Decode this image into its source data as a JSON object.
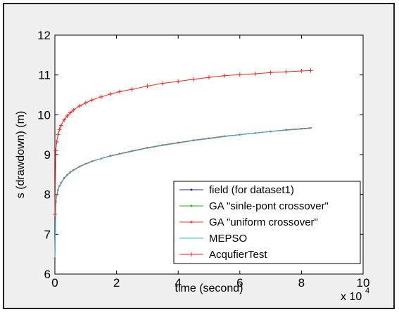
{
  "chart_data": {
    "type": "line",
    "title": "",
    "xlabel": "time (second)",
    "ylabel": "s (drawdown) (m)",
    "x_multiplier_label": "x 10",
    "x_multiplier_exponent": "4",
    "xlim": [
      0,
      100000
    ],
    "ylim": [
      6,
      12
    ],
    "x_ticks": [
      0,
      20000,
      40000,
      60000,
      80000,
      100000
    ],
    "x_tick_labels": [
      "0",
      "2",
      "4",
      "6",
      "8",
      "10"
    ],
    "y_ticks": [
      6,
      7,
      8,
      9,
      10,
      11,
      12
    ],
    "y_tick_labels": [
      "6",
      "7",
      "8",
      "9",
      "10",
      "11",
      "12"
    ],
    "grid": false,
    "legend_position": "bottom-right",
    "x": [
      0,
      300,
      600,
      1000,
      1500,
      2000,
      3000,
      4000,
      5000,
      6000,
      8000,
      10000,
      12000,
      15000,
      18000,
      21000,
      25000,
      30000,
      35000,
      40000,
      45000,
      50000,
      55000,
      60000,
      65000,
      70000,
      75000,
      80000,
      83000
    ],
    "series": [
      {
        "name": "field (for dataset1)",
        "color": "#2a2a8a",
        "marker": "dot",
        "values": [
          6.4,
          7.82,
          7.99,
          8.11,
          8.22,
          8.29,
          8.41,
          8.49,
          8.56,
          8.61,
          8.7,
          8.77,
          8.83,
          8.9,
          8.97,
          9.02,
          9.09,
          9.17,
          9.24,
          9.3,
          9.36,
          9.41,
          9.46,
          9.5,
          9.54,
          9.58,
          9.62,
          9.65,
          9.67
        ]
      },
      {
        "name": "GA \"sinle-pont crossover\"",
        "color": "#22aa22",
        "marker": "dot",
        "values": [
          6.4,
          7.8,
          7.98,
          8.1,
          8.21,
          8.29,
          8.4,
          8.48,
          8.55,
          8.61,
          8.7,
          8.77,
          8.83,
          8.9,
          8.96,
          9.02,
          9.09,
          9.17,
          9.24,
          9.3,
          9.36,
          9.41,
          9.46,
          9.5,
          9.54,
          9.58,
          9.62,
          9.65,
          9.67
        ]
      },
      {
        "name": "GA \"uniform crossover\"",
        "color": "#ff3333",
        "marker": "dot",
        "values": [
          6.4,
          7.81,
          7.99,
          8.11,
          8.22,
          8.29,
          8.4,
          8.49,
          8.56,
          8.61,
          8.7,
          8.77,
          8.83,
          8.9,
          8.97,
          9.02,
          9.09,
          9.17,
          9.24,
          9.3,
          9.36,
          9.41,
          9.46,
          9.5,
          9.54,
          9.58,
          9.62,
          9.65,
          9.67
        ]
      },
      {
        "name": "MEPSO",
        "color": "#22bbcc",
        "marker": "none",
        "values": [
          6.4,
          7.8,
          7.98,
          8.1,
          8.21,
          8.28,
          8.4,
          8.48,
          8.55,
          8.6,
          8.69,
          8.76,
          8.82,
          8.9,
          8.96,
          9.01,
          9.08,
          9.16,
          9.23,
          9.29,
          9.35,
          9.4,
          9.45,
          9.5,
          9.54,
          9.58,
          9.61,
          9.64,
          9.66
        ]
      },
      {
        "name": "AcqufierTest",
        "color": "#ff2020",
        "marker": "plus",
        "values": [
          7.5,
          9.1,
          9.32,
          9.5,
          9.63,
          9.73,
          9.87,
          9.97,
          10.05,
          10.12,
          10.22,
          10.3,
          10.37,
          10.45,
          10.52,
          10.58,
          10.64,
          10.72,
          10.79,
          10.84,
          10.89,
          10.94,
          10.98,
          11.01,
          11.03,
          11.06,
          11.08,
          11.1,
          11.11
        ]
      }
    ]
  }
}
